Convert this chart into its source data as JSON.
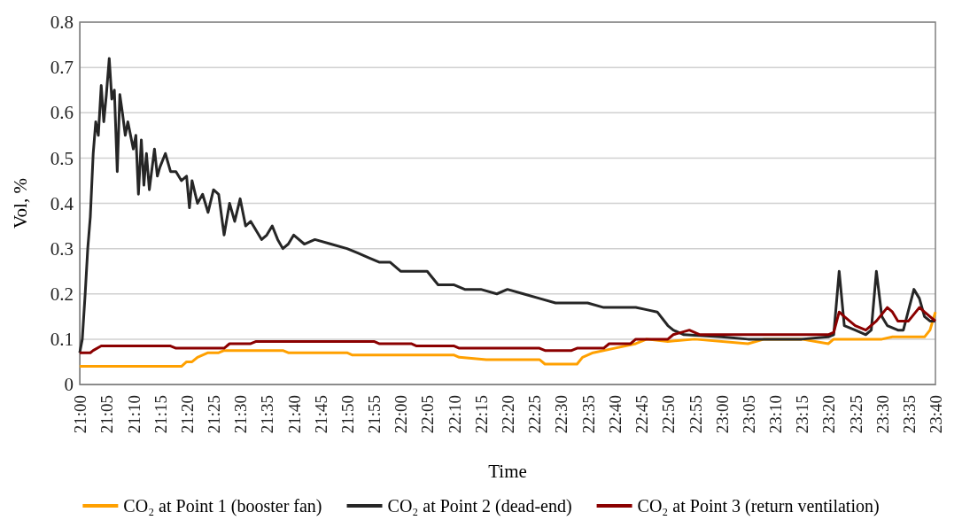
{
  "chart_data": {
    "type": "line",
    "xlabel": "Time",
    "ylabel": "Vol, %",
    "xlim": [
      21,
      23.667
    ],
    "ylim": [
      0,
      0.8
    ],
    "yticks": [
      0,
      0.1,
      0.2,
      0.3,
      0.4,
      0.5,
      0.6,
      0.7,
      0.8
    ],
    "xticks": [
      {
        "value": 21,
        "label": "21:00"
      },
      {
        "value": 21.083,
        "label": "21:05"
      },
      {
        "value": 21.167,
        "label": "21:10"
      },
      {
        "value": 21.25,
        "label": "21:15"
      },
      {
        "value": 21.333,
        "label": "21:20"
      },
      {
        "value": 21.417,
        "label": "21:25"
      },
      {
        "value": 21.5,
        "label": "21:30"
      },
      {
        "value": 21.583,
        "label": "21:35"
      },
      {
        "value": 21.667,
        "label": "21:40"
      },
      {
        "value": 21.75,
        "label": "21:45"
      },
      {
        "value": 21.833,
        "label": "21:50"
      },
      {
        "value": 21.917,
        "label": "21:55"
      },
      {
        "value": 22,
        "label": "22:00"
      },
      {
        "value": 22.083,
        "label": "22:05"
      },
      {
        "value": 22.167,
        "label": "22:10"
      },
      {
        "value": 22.25,
        "label": "22:15"
      },
      {
        "value": 22.333,
        "label": "22:20"
      },
      {
        "value": 22.417,
        "label": "22:25"
      },
      {
        "value": 22.5,
        "label": "22:30"
      },
      {
        "value": 22.583,
        "label": "22:35"
      },
      {
        "value": 22.667,
        "label": "22:40"
      },
      {
        "value": 22.75,
        "label": "22:45"
      },
      {
        "value": 22.833,
        "label": "22:50"
      },
      {
        "value": 22.917,
        "label": "22:55"
      },
      {
        "value": 23,
        "label": "23:00"
      },
      {
        "value": 23.083,
        "label": "23:05"
      },
      {
        "value": 23.167,
        "label": "23:10"
      },
      {
        "value": 23.25,
        "label": "23:15"
      },
      {
        "value": 23.333,
        "label": "23:20"
      },
      {
        "value": 23.417,
        "label": "23:25"
      },
      {
        "value": 23.5,
        "label": "23:30"
      },
      {
        "value": 23.583,
        "label": "23:35"
      },
      {
        "value": 23.667,
        "label": "23:40"
      }
    ],
    "grid": "y",
    "legend": "bottom",
    "line_style": "solid",
    "marker": "none",
    "series": [
      {
        "name": "CO₂ at Point 1 (booster fan)",
        "color": "#ffa000",
        "x": [
          21,
          21.317,
          21.333,
          21.35,
          21.367,
          21.4,
          21.433,
          21.45,
          21.633,
          21.65,
          21.833,
          21.85,
          22.167,
          22.183,
          22.267,
          22.433,
          22.45,
          22.55,
          22.567,
          22.6,
          22.667,
          22.733,
          22.767,
          22.833,
          22.917,
          23.083,
          23.133,
          23.25,
          23.333,
          23.35,
          23.5,
          23.533,
          23.633,
          23.65,
          23.667
        ],
        "values": [
          0.04,
          0.04,
          0.05,
          0.05,
          0.06,
          0.07,
          0.07,
          0.075,
          0.075,
          0.07,
          0.07,
          0.065,
          0.065,
          0.06,
          0.055,
          0.055,
          0.045,
          0.045,
          0.06,
          0.07,
          0.08,
          0.09,
          0.1,
          0.095,
          0.1,
          0.09,
          0.1,
          0.1,
          0.09,
          0.1,
          0.1,
          0.105,
          0.105,
          0.12,
          0.16
        ]
      },
      {
        "name": "CO₂ at Point 2 (dead-end)",
        "color": "#262626",
        "x": [
          21,
          21.008,
          21.017,
          21.025,
          21.033,
          21.042,
          21.05,
          21.058,
          21.067,
          21.075,
          21.083,
          21.092,
          21.1,
          21.108,
          21.117,
          21.125,
          21.133,
          21.142,
          21.15,
          21.167,
          21.175,
          21.183,
          21.192,
          21.2,
          21.208,
          21.217,
          21.233,
          21.242,
          21.25,
          21.267,
          21.283,
          21.3,
          21.317,
          21.333,
          21.342,
          21.35,
          21.367,
          21.383,
          21.4,
          21.417,
          21.433,
          21.45,
          21.467,
          21.483,
          21.5,
          21.517,
          21.533,
          21.55,
          21.567,
          21.583,
          21.6,
          21.617,
          21.633,
          21.65,
          21.667,
          21.7,
          21.733,
          21.783,
          21.833,
          21.867,
          21.9,
          21.933,
          21.967,
          22,
          22.033,
          22.083,
          22.117,
          22.167,
          22.2,
          22.25,
          22.3,
          22.333,
          22.383,
          22.433,
          22.483,
          22.533,
          22.583,
          22.633,
          22.683,
          22.733,
          22.767,
          22.8,
          22.833,
          22.85,
          22.883,
          23,
          23.083,
          23.167,
          23.25,
          23.333,
          23.35,
          23.367,
          23.383,
          23.417,
          23.45,
          23.467,
          23.483,
          23.5,
          23.517,
          23.55,
          23.567,
          23.6,
          23.617,
          23.633,
          23.65,
          23.667
        ],
        "values": [
          0.07,
          0.1,
          0.2,
          0.3,
          0.37,
          0.51,
          0.58,
          0.55,
          0.66,
          0.58,
          0.64,
          0.72,
          0.63,
          0.65,
          0.47,
          0.64,
          0.6,
          0.55,
          0.58,
          0.52,
          0.55,
          0.42,
          0.54,
          0.44,
          0.51,
          0.43,
          0.52,
          0.46,
          0.48,
          0.51,
          0.47,
          0.47,
          0.45,
          0.46,
          0.39,
          0.45,
          0.4,
          0.42,
          0.38,
          0.43,
          0.42,
          0.33,
          0.4,
          0.36,
          0.41,
          0.35,
          0.36,
          0.34,
          0.32,
          0.33,
          0.35,
          0.32,
          0.3,
          0.31,
          0.33,
          0.31,
          0.32,
          0.31,
          0.3,
          0.29,
          0.28,
          0.27,
          0.27,
          0.25,
          0.25,
          0.25,
          0.22,
          0.22,
          0.21,
          0.21,
          0.2,
          0.21,
          0.2,
          0.19,
          0.18,
          0.18,
          0.18,
          0.17,
          0.17,
          0.17,
          0.165,
          0.16,
          0.13,
          0.12,
          0.11,
          0.105,
          0.1,
          0.1,
          0.1,
          0.105,
          0.11,
          0.25,
          0.13,
          0.12,
          0.11,
          0.12,
          0.25,
          0.15,
          0.13,
          0.12,
          0.12,
          0.21,
          0.19,
          0.15,
          0.14,
          0.14
        ]
      },
      {
        "name": "CO₂ at Point 3 (return ventilation)",
        "color": "#8b0000",
        "x": [
          21,
          21.033,
          21.042,
          21.067,
          21.283,
          21.3,
          21.45,
          21.467,
          21.533,
          21.55,
          21.917,
          21.933,
          22.033,
          22.05,
          22.167,
          22.183,
          22.433,
          22.45,
          22.533,
          22.55,
          22.633,
          22.65,
          22.717,
          22.733,
          22.833,
          22.85,
          22.9,
          22.933,
          23.083,
          23.25,
          23.333,
          23.35,
          23.367,
          23.383,
          23.417,
          23.45,
          23.483,
          23.517,
          23.533,
          23.55,
          23.583,
          23.617,
          23.633,
          23.65,
          23.667
        ],
        "values": [
          0.07,
          0.07,
          0.075,
          0.085,
          0.085,
          0.08,
          0.08,
          0.09,
          0.09,
          0.095,
          0.095,
          0.09,
          0.09,
          0.085,
          0.085,
          0.08,
          0.08,
          0.075,
          0.075,
          0.08,
          0.08,
          0.09,
          0.09,
          0.1,
          0.1,
          0.11,
          0.12,
          0.11,
          0.11,
          0.11,
          0.11,
          0.115,
          0.16,
          0.15,
          0.13,
          0.12,
          0.14,
          0.17,
          0.16,
          0.14,
          0.14,
          0.17,
          0.16,
          0.15,
          0.14
        ]
      }
    ]
  }
}
